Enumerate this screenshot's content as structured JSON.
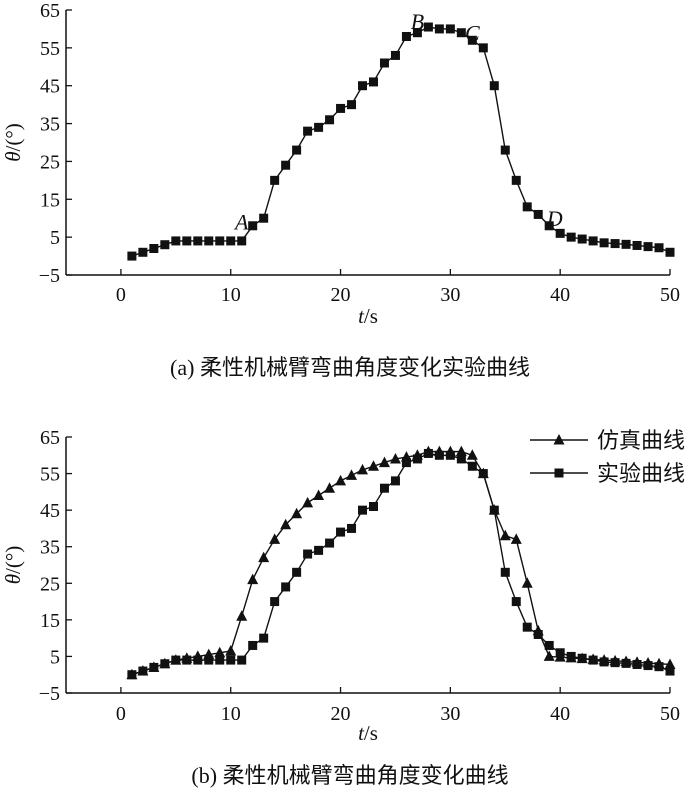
{
  "chart_data": [
    {
      "type": "line",
      "caption": "(a) 柔性机械臂弯曲角度变化实验曲线",
      "xlabel_var": "t",
      "xlabel_unit": "/s",
      "ylabel_var": "θ",
      "ylabel_unit": "/(°)",
      "xlim": [
        -5,
        50
      ],
      "ylim": [
        -5,
        65
      ],
      "xticks": [
        0,
        10,
        20,
        30,
        40,
        50
      ],
      "xtick_labels": [
        "0",
        "10",
        "20",
        "30",
        "40",
        "50"
      ],
      "yticks": [
        -5,
        5,
        15,
        25,
        35,
        45,
        55,
        65
      ],
      "ytick_labels": [
        "−5",
        "5",
        "15",
        "25",
        "35",
        "45",
        "55",
        "65"
      ],
      "grid": false,
      "annotations": [
        {
          "text": "A",
          "x": 11,
          "y": 7
        },
        {
          "text": "B",
          "x": 27,
          "y": 60
        },
        {
          "text": "C",
          "x": 32,
          "y": 57
        },
        {
          "text": "D",
          "x": 39.5,
          "y": 8
        }
      ],
      "series": [
        {
          "marker": "square",
          "x": [
            1,
            2,
            3,
            4,
            5,
            6,
            7,
            8,
            9,
            10,
            11,
            12,
            13,
            14,
            15,
            16,
            17,
            18,
            19,
            20,
            21,
            22,
            23,
            24,
            25,
            26,
            27,
            28,
            29,
            30,
            31,
            32,
            33,
            34,
            35,
            36,
            37,
            38,
            39,
            40,
            41,
            42,
            43,
            44,
            45,
            46,
            47,
            48,
            49,
            50
          ],
          "y": [
            0,
            1,
            2,
            3,
            4,
            4,
            4,
            4,
            4,
            4,
            4,
            8,
            10,
            20,
            24,
            28,
            33,
            34,
            36,
            39,
            40,
            45,
            46,
            51,
            53,
            58,
            59,
            60.5,
            60,
            60,
            59,
            57,
            55,
            45,
            28,
            20,
            13,
            11,
            8,
            6,
            5,
            4.5,
            4,
            3.5,
            3.3,
            3.1,
            2.8,
            2.5,
            2.2,
            1
          ]
        }
      ]
    },
    {
      "type": "line",
      "caption": "(b) 柔性机械臂弯曲角度变化曲线",
      "xlabel_var": "t",
      "xlabel_unit": "/s",
      "ylabel_var": "θ",
      "ylabel_unit": "/(°)",
      "xlim": [
        -5,
        50
      ],
      "ylim": [
        -5,
        65
      ],
      "xticks": [
        0,
        10,
        20,
        30,
        40,
        50
      ],
      "xtick_labels": [
        "0",
        "10",
        "20",
        "30",
        "40",
        "50"
      ],
      "yticks": [
        -5,
        5,
        15,
        25,
        35,
        45,
        55,
        65
      ],
      "ytick_labels": [
        "−5",
        "5",
        "15",
        "25",
        "35",
        "45",
        "55",
        "65"
      ],
      "grid": false,
      "legend_position": "top-right",
      "series": [
        {
          "name": "仿真曲线",
          "marker": "triangle",
          "x": [
            1,
            2,
            3,
            4,
            5,
            6,
            7,
            8,
            9,
            10,
            11,
            12,
            13,
            14,
            15,
            16,
            17,
            18,
            19,
            20,
            21,
            22,
            23,
            24,
            25,
            26,
            27,
            28,
            29,
            30,
            31,
            32,
            33,
            34,
            35,
            36,
            37,
            38,
            39,
            40,
            41,
            42,
            43,
            44,
            45,
            46,
            47,
            48,
            49,
            50
          ],
          "y": [
            0,
            1,
            2,
            3,
            4,
            4.5,
            5,
            5.5,
            6,
            6.5,
            16,
            26,
            32,
            37,
            41,
            44,
            47,
            49,
            51,
            53,
            54.5,
            56,
            57,
            58,
            59,
            59.5,
            60,
            61,
            61,
            61,
            61,
            60,
            55,
            45,
            38,
            37,
            25,
            12,
            5,
            4.8,
            4.6,
            4.4,
            4.2,
            4,
            3.8,
            3.6,
            3.4,
            3.2,
            3,
            2.8
          ]
        },
        {
          "name": "实验曲线",
          "marker": "square",
          "x": [
            1,
            2,
            3,
            4,
            5,
            6,
            7,
            8,
            9,
            10,
            11,
            12,
            13,
            14,
            15,
            16,
            17,
            18,
            19,
            20,
            21,
            22,
            23,
            24,
            25,
            26,
            27,
            28,
            29,
            30,
            31,
            32,
            33,
            34,
            35,
            36,
            37,
            38,
            39,
            40,
            41,
            42,
            43,
            44,
            45,
            46,
            47,
            48,
            49,
            50
          ],
          "y": [
            0,
            1,
            2,
            3,
            4,
            4,
            4,
            4,
            4,
            4,
            4,
            8,
            10,
            20,
            24,
            28,
            33,
            34,
            36,
            39,
            40,
            45,
            46,
            51,
            53,
            58,
            59,
            60.5,
            60,
            60,
            59,
            57,
            55,
            45,
            28,
            20,
            13,
            11,
            8,
            6,
            5,
            4.5,
            4,
            3.5,
            3.3,
            3.1,
            2.8,
            2.5,
            2.2,
            1
          ]
        }
      ]
    }
  ]
}
